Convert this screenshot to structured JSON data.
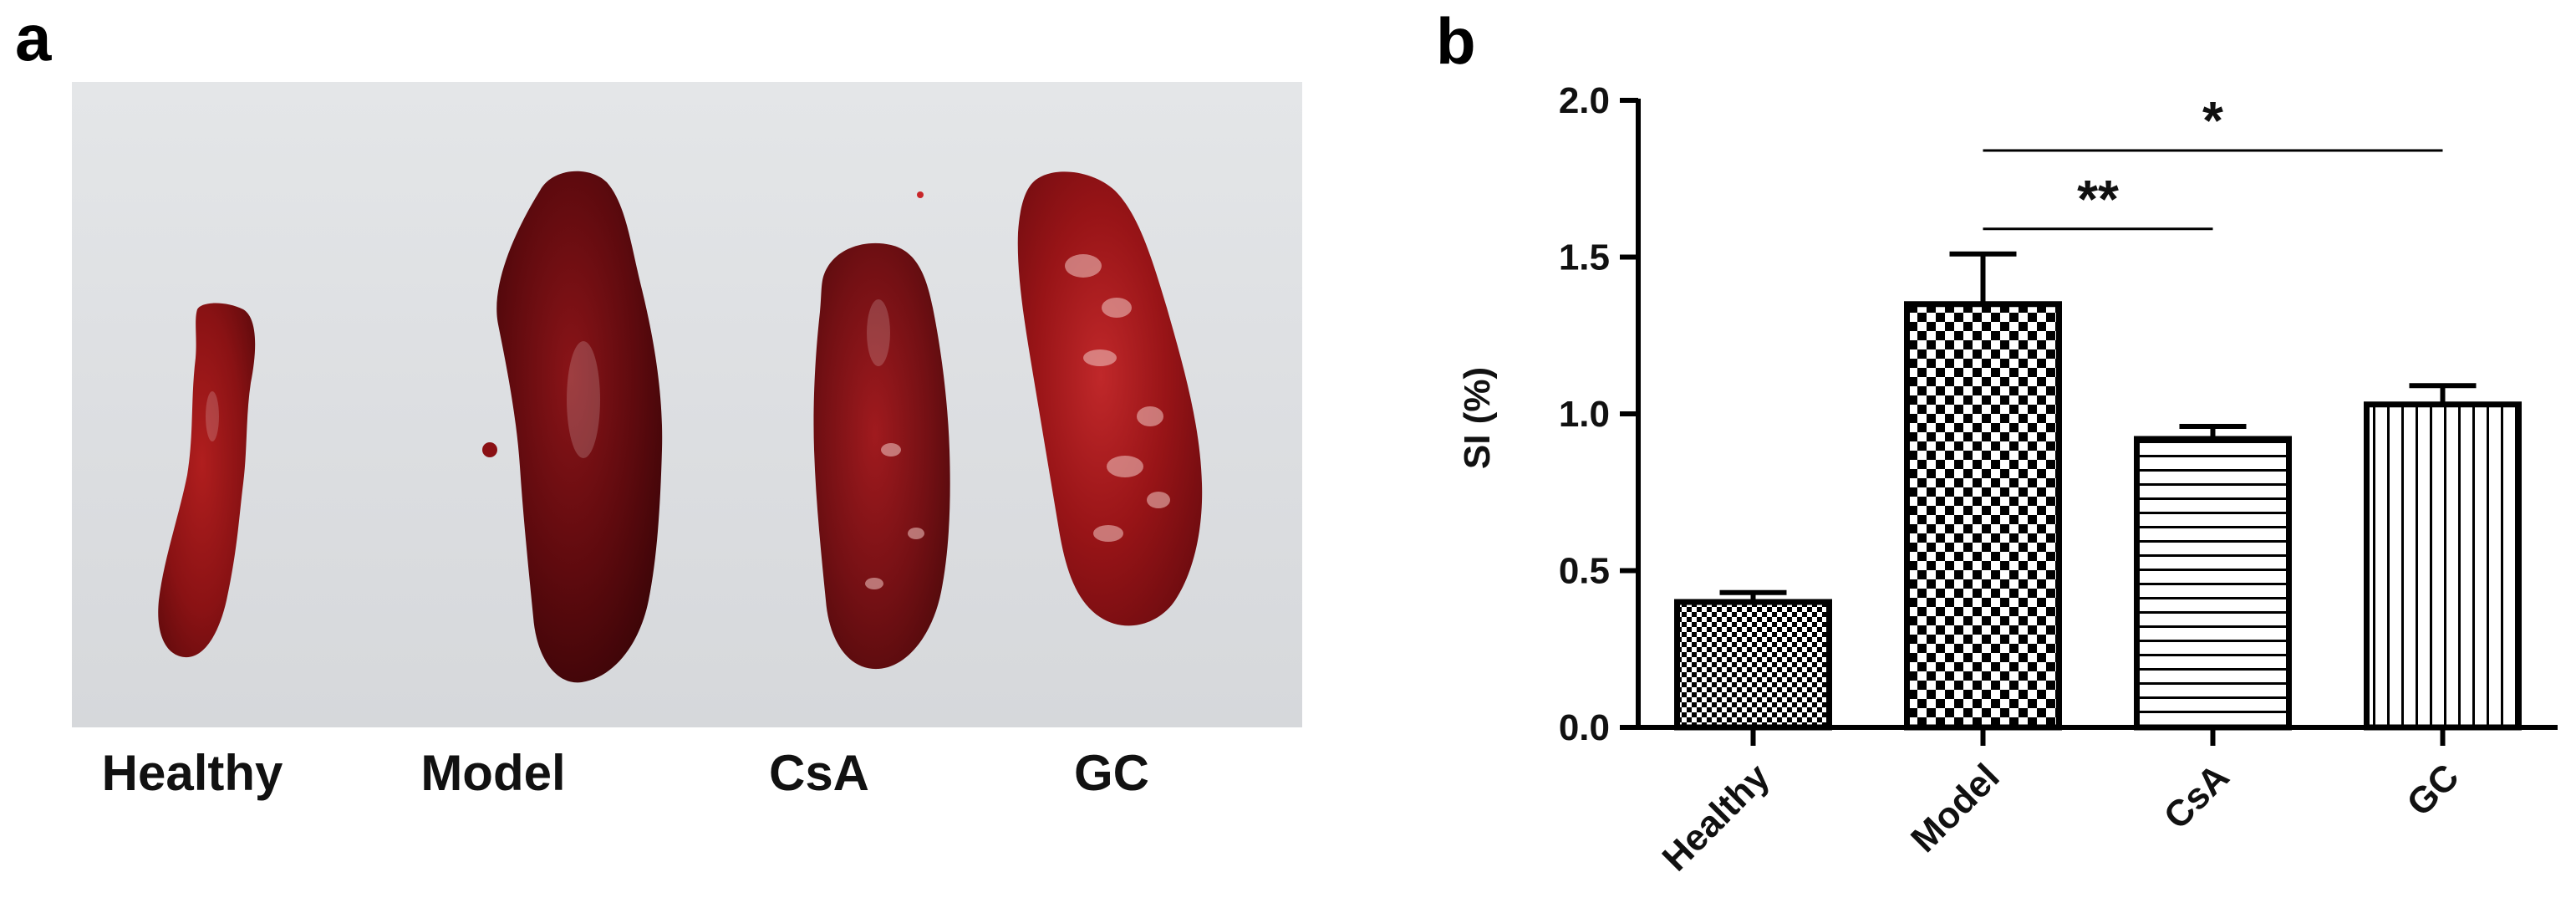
{
  "panel_a": {
    "letter": "a",
    "labels": [
      "Healthy",
      "Model",
      "CsA",
      "GC"
    ]
  },
  "panel_b": {
    "letter": "b"
  },
  "chart_data": {
    "type": "bar",
    "categories": [
      "Healthy",
      "Model",
      "CsA",
      "GC"
    ],
    "values": [
      0.4,
      1.35,
      0.92,
      1.03
    ],
    "errors": [
      0.03,
      0.16,
      0.04,
      0.06
    ],
    "patterns": [
      "fine-checker",
      "checker",
      "horizontal-stripes",
      "vertical-stripes"
    ],
    "xlabel": "",
    "ylabel": "SI (%)",
    "ylim": [
      0,
      2.0
    ],
    "yticks": [
      "0.0",
      "0.5",
      "1.0",
      "1.5",
      "2.0"
    ],
    "ytick_values": [
      0,
      0.5,
      1.0,
      1.5,
      2.0
    ],
    "grid": false,
    "significance": [
      {
        "from": "Model",
        "to": "CsA",
        "label": "**"
      },
      {
        "from": "Model",
        "to": "GC",
        "label": "*"
      }
    ]
  }
}
